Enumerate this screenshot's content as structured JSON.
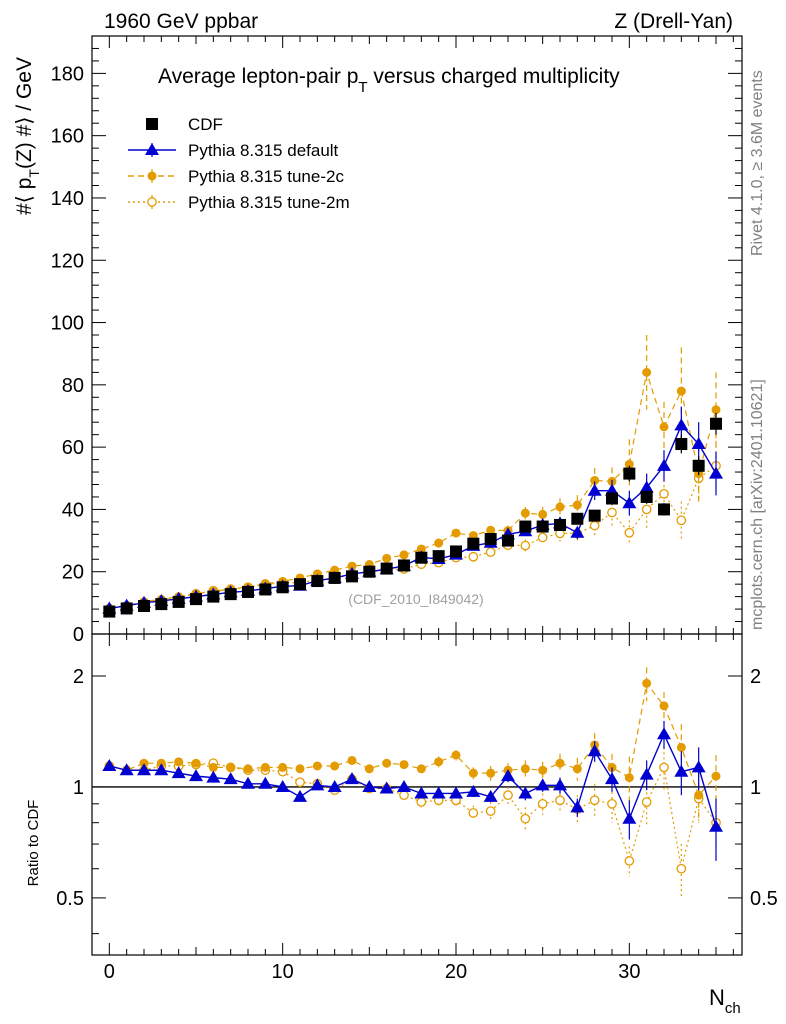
{
  "header": {
    "left": "1960 GeV ppbar",
    "right": "Z (Drell-Yan)"
  },
  "side_text": {
    "rivet": "Rivet 4.1.0, ≥ 3.6M events",
    "mcplots": "mcplots.cern.ch [arXiv:2401.10621]"
  },
  "chart_data": [
    {
      "type": "scatter",
      "title": "Average lepton-pair p_T versus charged multiplicity",
      "title_main": "Average lepton-pair p",
      "title_sub": "T",
      "title_rest": " versus charged multiplicity",
      "ylabel": "#⟨ p_T(Z) #⟩ / GeV",
      "xlabel": "N_ch",
      "xlim": [
        -1,
        36.5
      ],
      "ylim": [
        0,
        192
      ],
      "xticks": [
        0,
        10,
        20,
        30
      ],
      "yticks": [
        0,
        20,
        40,
        60,
        80,
        100,
        120,
        140,
        160,
        180
      ],
      "watermark": "(CDF_2010_I849042)",
      "x": [
        0,
        1,
        2,
        3,
        4,
        5,
        6,
        7,
        8,
        9,
        10,
        11,
        12,
        13,
        14,
        15,
        16,
        17,
        18,
        19,
        20,
        21,
        22,
        23,
        24,
        25,
        26,
        27,
        28,
        29,
        30,
        31,
        32,
        33,
        34,
        35
      ],
      "series": [
        {
          "name": "CDF",
          "color": "#000000",
          "marker": "square",
          "values": [
            7.2,
            8.2,
            9.0,
            9.6,
            10.3,
            11.2,
            12.0,
            12.8,
            13.5,
            14.3,
            15.0,
            16.0,
            17.0,
            18.0,
            18.5,
            20.0,
            21.0,
            22.0,
            24.5,
            25.0,
            26.5,
            29.0,
            30.5,
            30.0,
            34.5,
            34.5,
            35.0,
            37.0,
            38.0,
            43.5,
            51.5,
            44.0,
            40.0,
            61.0,
            54.0,
            67.5
          ],
          "errors": [
            0.3,
            0.3,
            0.3,
            0.3,
            0.3,
            0.3,
            0.3,
            0.3,
            0.3,
            0.3,
            0.4,
            0.4,
            0.4,
            0.5,
            0.5,
            0.5,
            0.6,
            0.6,
            0.7,
            0.7,
            0.8,
            0.9,
            1.0,
            1.0,
            1.2,
            1.3,
            1.4,
            1.5,
            1.6,
            2.0,
            2.5,
            2.2,
            2.0,
            3.0,
            3.0,
            3.5
          ]
        },
        {
          "name": "Pythia 8.315 default",
          "color": "#0000d0",
          "marker": "triangle",
          "line": "solid",
          "values": [
            8.2,
            9.1,
            10.0,
            10.6,
            11.3,
            12.0,
            12.7,
            13.4,
            13.8,
            14.6,
            15.3,
            15.5,
            17.1,
            18.0,
            19.3,
            20.0,
            20.8,
            21.9,
            24.6,
            24.1,
            25.5,
            28.3,
            29.3,
            32.0,
            33.0,
            35.0,
            35.5,
            32.5,
            46.0,
            46.0,
            42.0,
            47.0,
            54.0,
            67.0,
            61.0,
            51.5
          ],
          "errors": [
            0.3,
            0.3,
            0.3,
            0.3,
            0.3,
            0.3,
            0.3,
            0.3,
            0.4,
            0.4,
            0.4,
            0.4,
            0.5,
            0.5,
            0.5,
            0.6,
            0.6,
            0.7,
            0.8,
            0.8,
            0.9,
            1.0,
            1.1,
            1.2,
            1.4,
            1.6,
            1.8,
            2.0,
            3.0,
            3.5,
            4.0,
            4.5,
            5.0,
            6.0,
            7.0,
            7.0
          ]
        },
        {
          "name": "Pythia 8.315 tune-2c",
          "color": "#e39b00",
          "marker": "circle",
          "line": "dashed",
          "values": [
            8.2,
            9.1,
            10.4,
            11.1,
            12.0,
            13.0,
            13.6,
            14.4,
            15.1,
            16.2,
            16.9,
            18.0,
            19.3,
            20.5,
            21.8,
            22.3,
            24.3,
            25.4,
            27.3,
            29.2,
            32.4,
            31.6,
            33.3,
            33.2,
            38.8,
            38.4,
            40.8,
            41.4,
            49.3,
            49.0,
            54.5,
            84.0,
            66.5,
            78.0,
            51.5,
            72.0
          ],
          "errors": [
            0.3,
            0.3,
            0.3,
            0.3,
            0.3,
            0.3,
            0.3,
            0.4,
            0.4,
            0.4,
            0.4,
            0.5,
            0.5,
            0.5,
            0.6,
            0.6,
            0.7,
            0.8,
            0.9,
            1.0,
            1.1,
            1.2,
            1.4,
            1.6,
            2.0,
            2.4,
            2.8,
            3.2,
            4.0,
            4.5,
            8.0,
            12.0,
            8.0,
            14.0,
            9.0,
            12.0
          ]
        },
        {
          "name": "Pythia 8.315 tune-2m",
          "color": "#e39b00",
          "marker": "open-circle",
          "line": "dotted",
          "values": [
            8.2,
            9.1,
            10.0,
            10.9,
            11.7,
            12.9,
            13.9,
            14.4,
            15.0,
            15.9,
            16.5,
            16.5,
            17.4,
            17.6,
            19.5,
            19.9,
            20.8,
            20.9,
            22.4,
            22.9,
            24.5,
            24.8,
            26.3,
            28.5,
            28.4,
            31.0,
            32.3,
            32.3,
            34.8,
            39.0,
            32.5,
            40.0,
            45.0,
            36.5,
            50.0,
            54.0
          ],
          "errors": [
            0.3,
            0.3,
            0.3,
            0.3,
            0.3,
            0.3,
            0.3,
            0.4,
            0.4,
            0.4,
            0.4,
            0.5,
            0.5,
            0.5,
            0.6,
            0.6,
            0.7,
            0.8,
            0.9,
            1.0,
            1.1,
            1.2,
            1.4,
            1.6,
            2.0,
            2.4,
            2.8,
            3.2,
            4.0,
            4.5,
            4.0,
            6.0,
            6.0,
            6.0,
            7.0,
            8.0
          ]
        }
      ]
    },
    {
      "type": "scatter",
      "ylabel": "Ratio to CDF",
      "xlabel": "N_ch",
      "yscale": "log",
      "ylim": [
        0.35,
        2.6
      ],
      "yticks": [
        0.5,
        1,
        2
      ],
      "ytick_labels": [
        "0.5",
        "1",
        "2"
      ],
      "reference_line": 1,
      "x": [
        0,
        1,
        2,
        3,
        4,
        5,
        6,
        7,
        8,
        9,
        10,
        11,
        12,
        13,
        14,
        15,
        16,
        17,
        18,
        19,
        20,
        21,
        22,
        23,
        24,
        25,
        26,
        27,
        28,
        29,
        30,
        31,
        32,
        33,
        34,
        35
      ],
      "series": [
        {
          "name": "Pythia 8.315 default",
          "color": "#0000d0",
          "marker": "triangle",
          "line": "solid",
          "values": [
            1.14,
            1.11,
            1.11,
            1.11,
            1.09,
            1.07,
            1.06,
            1.05,
            1.02,
            1.02,
            1.0,
            0.94,
            1.01,
            1.0,
            1.05,
            1.0,
            0.99,
            1.0,
            0.96,
            0.96,
            0.96,
            0.97,
            0.94,
            1.07,
            0.96,
            1.01,
            1.01,
            0.88,
            1.25,
            1.05,
            0.82,
            1.08,
            1.39,
            1.1,
            1.13,
            0.78
          ],
          "errors": [
            0.01,
            0.01,
            0.01,
            0.01,
            0.01,
            0.01,
            0.01,
            0.01,
            0.01,
            0.01,
            0.01,
            0.01,
            0.02,
            0.02,
            0.02,
            0.02,
            0.02,
            0.02,
            0.02,
            0.02,
            0.03,
            0.03,
            0.03,
            0.04,
            0.04,
            0.04,
            0.05,
            0.05,
            0.08,
            0.08,
            0.1,
            0.1,
            0.12,
            0.15,
            0.15,
            0.15
          ]
        },
        {
          "name": "Pythia 8.315 tune-2c",
          "color": "#e39b00",
          "marker": "circle",
          "line": "dashed",
          "values": [
            1.14,
            1.11,
            1.16,
            1.16,
            1.17,
            1.16,
            1.13,
            1.13,
            1.12,
            1.13,
            1.13,
            1.12,
            1.14,
            1.14,
            1.18,
            1.12,
            1.16,
            1.15,
            1.12,
            1.17,
            1.22,
            1.09,
            1.09,
            1.11,
            1.12,
            1.11,
            1.16,
            1.12,
            1.3,
            1.13,
            1.06,
            1.91,
            1.66,
            1.28,
            0.95,
            1.07
          ],
          "errors": [
            0.01,
            0.01,
            0.01,
            0.01,
            0.01,
            0.01,
            0.01,
            0.01,
            0.01,
            0.01,
            0.01,
            0.02,
            0.02,
            0.02,
            0.02,
            0.02,
            0.03,
            0.03,
            0.03,
            0.04,
            0.04,
            0.04,
            0.05,
            0.05,
            0.06,
            0.06,
            0.07,
            0.08,
            0.1,
            0.1,
            0.15,
            0.2,
            0.15,
            0.2,
            0.15,
            0.15
          ]
        },
        {
          "name": "Pythia 8.315 tune-2m",
          "color": "#e39b00",
          "marker": "open-circle",
          "line": "dotted",
          "values": [
            1.14,
            1.11,
            1.11,
            1.14,
            1.14,
            1.15,
            1.16,
            1.13,
            1.11,
            1.11,
            1.1,
            1.03,
            1.02,
            0.98,
            1.05,
            0.99,
            0.99,
            0.95,
            0.91,
            0.92,
            0.92,
            0.85,
            0.86,
            0.95,
            0.82,
            0.9,
            0.92,
            0.87,
            0.92,
            0.9,
            0.63,
            0.91,
            1.13,
            0.6,
            0.93,
            0.8
          ],
          "errors": [
            0.01,
            0.01,
            0.01,
            0.01,
            0.01,
            0.01,
            0.01,
            0.01,
            0.01,
            0.01,
            0.01,
            0.02,
            0.02,
            0.02,
            0.02,
            0.02,
            0.03,
            0.03,
            0.03,
            0.04,
            0.04,
            0.04,
            0.05,
            0.05,
            0.06,
            0.06,
            0.07,
            0.08,
            0.1,
            0.1,
            0.06,
            0.12,
            0.15,
            0.1,
            0.12,
            0.12
          ]
        }
      ]
    }
  ]
}
